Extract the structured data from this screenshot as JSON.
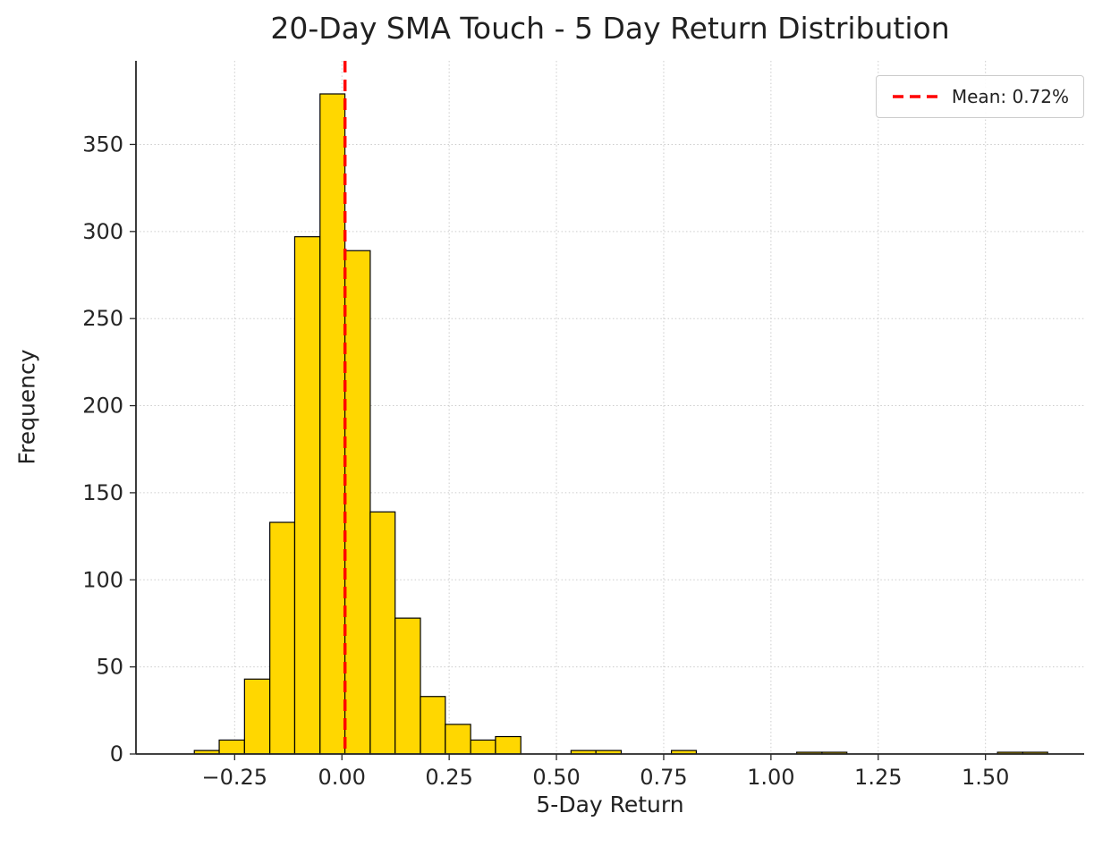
{
  "page": {
    "background": "#ffffff"
  },
  "chart_data": {
    "type": "bar",
    "subtype": "histogram",
    "title": "20-Day SMA Touch - 5 Day Return Distribution",
    "xlabel": "5-Day Return",
    "ylabel": "Frequency",
    "xlim": [
      -0.48,
      1.73
    ],
    "ylim": [
      0,
      398
    ],
    "grid": true,
    "grid_color": "#cccccc",
    "bar_color": "#FFD700",
    "bar_edge_color": "#000000",
    "xtick_values": [
      -0.25,
      0,
      0.25,
      0.5,
      0.75,
      1.0,
      1.25,
      1.5
    ],
    "xtick_labels": [
      "−0.25",
      "0.00",
      "0.25",
      "0.50",
      "0.75",
      "1.00",
      "1.25",
      "1.50"
    ],
    "ytick_values": [
      0,
      50,
      100,
      150,
      200,
      250,
      300,
      350
    ],
    "ytick_labels": [
      "0",
      "50",
      "100",
      "150",
      "200",
      "250",
      "300",
      "350"
    ],
    "mean_line": {
      "value": 0.0072,
      "color": "#ff0000",
      "style": "dashed",
      "width": 3.5
    },
    "legend": {
      "position": "upper right",
      "label": "Mean: 0.72%"
    },
    "bins": [
      {
        "x0": -0.344,
        "x1": -0.286,
        "count": 2
      },
      {
        "x0": -0.286,
        "x1": -0.227,
        "count": 8
      },
      {
        "x0": -0.227,
        "x1": -0.168,
        "count": 43
      },
      {
        "x0": -0.168,
        "x1": -0.11,
        "count": 133
      },
      {
        "x0": -0.11,
        "x1": -0.051,
        "count": 297
      },
      {
        "x0": -0.051,
        "x1": 0.007,
        "count": 379
      },
      {
        "x0": 0.007,
        "x1": 0.066,
        "count": 289
      },
      {
        "x0": 0.066,
        "x1": 0.124,
        "count": 139
      },
      {
        "x0": 0.124,
        "x1": 0.183,
        "count": 78
      },
      {
        "x0": 0.183,
        "x1": 0.241,
        "count": 33
      },
      {
        "x0": 0.241,
        "x1": 0.3,
        "count": 17
      },
      {
        "x0": 0.3,
        "x1": 0.358,
        "count": 8
      },
      {
        "x0": 0.358,
        "x1": 0.417,
        "count": 10
      },
      {
        "x0": 0.417,
        "x1": 0.475,
        "count": 0
      },
      {
        "x0": 0.475,
        "x1": 0.534,
        "count": 0
      },
      {
        "x0": 0.534,
        "x1": 0.592,
        "count": 2
      },
      {
        "x0": 0.592,
        "x1": 0.651,
        "count": 2
      },
      {
        "x0": 0.651,
        "x1": 0.709,
        "count": 0
      },
      {
        "x0": 0.709,
        "x1": 0.768,
        "count": 0
      },
      {
        "x0": 0.768,
        "x1": 0.826,
        "count": 2
      },
      {
        "x0": 0.826,
        "x1": 0.885,
        "count": 0
      },
      {
        "x0": 0.885,
        "x1": 0.943,
        "count": 0
      },
      {
        "x0": 0.943,
        "x1": 1.002,
        "count": 0
      },
      {
        "x0": 1.002,
        "x1": 1.06,
        "count": 0
      },
      {
        "x0": 1.06,
        "x1": 1.119,
        "count": 1
      },
      {
        "x0": 1.119,
        "x1": 1.177,
        "count": 1
      },
      {
        "x0": 1.177,
        "x1": 1.236,
        "count": 0
      },
      {
        "x0": 1.236,
        "x1": 1.294,
        "count": 0
      },
      {
        "x0": 1.294,
        "x1": 1.353,
        "count": 0
      },
      {
        "x0": 1.353,
        "x1": 1.411,
        "count": 0
      },
      {
        "x0": 1.411,
        "x1": 1.47,
        "count": 0
      },
      {
        "x0": 1.47,
        "x1": 1.528,
        "count": 0
      },
      {
        "x0": 1.528,
        "x1": 1.587,
        "count": 1
      },
      {
        "x0": 1.587,
        "x1": 1.645,
        "count": 1
      }
    ]
  }
}
